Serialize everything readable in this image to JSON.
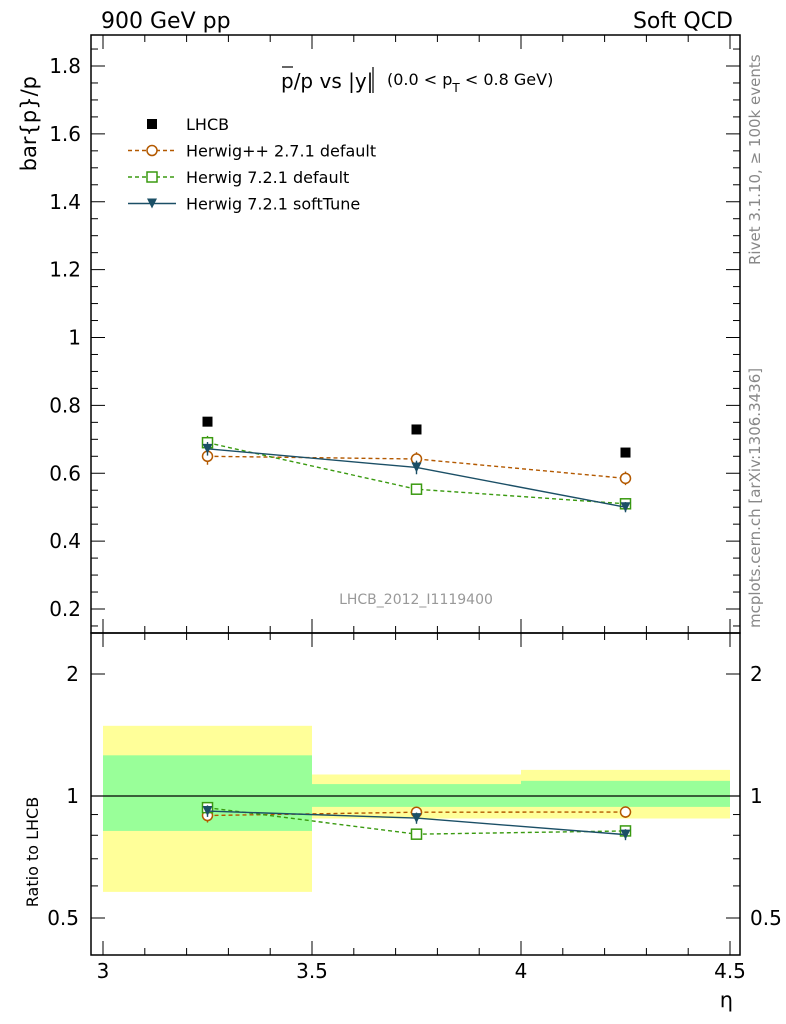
{
  "header": {
    "left": "900 GeV pp",
    "right": "Soft QCD"
  },
  "side_text": {
    "rivet": "Rivet 3.1.10, ≥ 100k events",
    "mcplots": "mcplots.cern.ch [arXiv:1306.3436]"
  },
  "chart_data": [
    {
      "type": "line",
      "title": "p̄/p vs |y|(0.0 < pT < 0.8 GeV)",
      "title_main": "p/p vs |y|",
      "title_sub": "(0.0 < p",
      "title_sub_index": "T",
      "title_sub_end": " < 0.8 GeV)",
      "ylabel": "bar{p}/p",
      "xlim": [
        3.0,
        4.5
      ],
      "ylim": [
        0.15,
        1.9
      ],
      "yticks": [
        "0.2",
        "0.4",
        "0.6",
        "0.8",
        "1",
        "1.2",
        "1.4",
        "1.6",
        "1.8"
      ],
      "watermark": "LHCB_2012_I1119400",
      "legend_position": "top-left",
      "x": [
        3.25,
        3.75,
        4.25
      ],
      "series": [
        {
          "name": "LHCB",
          "values": [
            0.752,
            0.729,
            0.661
          ],
          "errors": [
            0.0,
            0.0,
            0.0
          ],
          "color": "#000000",
          "marker": "square-filled",
          "line": "none"
        },
        {
          "name": "Herwig++ 2.7.1 default",
          "values": [
            0.65,
            0.642,
            0.585
          ],
          "errors": [
            0.025,
            0.02,
            0.02
          ],
          "color": "#b35900",
          "marker": "circle-open",
          "line": "dashed"
        },
        {
          "name": "Herwig 7.2.1 default",
          "values": [
            0.69,
            0.553,
            0.51
          ],
          "errors": [
            0.02,
            0.015,
            0.015
          ],
          "color": "#3a9a10",
          "marker": "square-open",
          "line": "dashed"
        },
        {
          "name": "Herwig 7.2.1 softTune",
          "values": [
            0.672,
            0.617,
            0.5
          ],
          "errors": [
            0.02,
            0.02,
            0.015
          ],
          "color": "#1b4f66",
          "marker": "triangle-down-filled",
          "line": "solid"
        }
      ]
    },
    {
      "type": "line",
      "ylabel": "Ratio to LHCB",
      "xlabel": "η",
      "xlim": [
        3.0,
        4.5
      ],
      "ylim": [
        0.4,
        2.4
      ],
      "y_scale": "log",
      "yticks": [
        "0.5",
        "1",
        "2"
      ],
      "xticks": [
        "3",
        "3.5",
        "4",
        "4.5"
      ],
      "bands": [
        {
          "x0": 3.0,
          "x1": 3.5,
          "yellow": [
            0.58,
            1.49
          ],
          "green": [
            0.82,
            1.26
          ]
        },
        {
          "x0": 3.5,
          "x1": 4.0,
          "yellow": [
            0.88,
            1.13
          ],
          "green": [
            0.94,
            1.07
          ]
        },
        {
          "x0": 4.0,
          "x1": 4.5,
          "yellow": [
            0.88,
            1.16
          ],
          "green": [
            0.94,
            1.09
          ]
        }
      ],
      "x": [
        3.25,
        3.75,
        4.25
      ],
      "series": [
        {
          "name": "Herwig++ 2.7.1 default",
          "values": [
            0.895,
            0.912,
            0.913
          ],
          "errors": [
            0.035,
            0.028,
            0.03
          ],
          "color": "#b35900",
          "marker": "circle-open",
          "line": "dashed"
        },
        {
          "name": "Herwig 7.2.1 default",
          "values": [
            0.936,
            0.805,
            0.82
          ],
          "errors": [
            0.03,
            0.022,
            0.025
          ],
          "color": "#3a9a10",
          "marker": "square-open",
          "line": "dashed"
        },
        {
          "name": "Herwig 7.2.1 softTune",
          "values": [
            0.918,
            0.882,
            0.803
          ],
          "errors": [
            0.03,
            0.028,
            0.025
          ],
          "color": "#1b4f66",
          "marker": "triangle-down-filled",
          "line": "solid"
        }
      ]
    }
  ]
}
